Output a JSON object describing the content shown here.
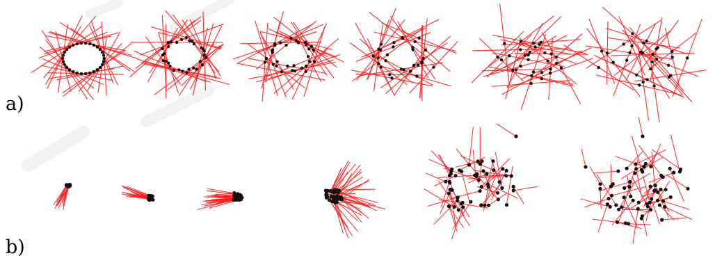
{
  "figure": {
    "row_labels": [
      "a)",
      "b)"
    ],
    "colors": {
      "rod": "#ff1a1a",
      "dot": "#151010",
      "watermark": "#d9d9d9"
    },
    "rows": [
      {
        "id": "a",
        "description_kind": "rings",
        "panels": [
          {
            "kind": "ring",
            "disorder": 0.0
          },
          {
            "kind": "ring",
            "disorder": 0.12
          },
          {
            "kind": "ring",
            "disorder": 0.22
          },
          {
            "kind": "ring",
            "disorder": 0.35
          },
          {
            "kind": "ring",
            "disorder": 0.55
          },
          {
            "kind": "ring",
            "disorder": 0.85
          }
        ]
      },
      {
        "id": "b",
        "description_kind": "clusters",
        "panels": [
          {
            "kind": "bundle",
            "spread": 0.1
          },
          {
            "kind": "bundle",
            "spread": 0.15
          },
          {
            "kind": "bundle",
            "spread": 0.22
          },
          {
            "kind": "bundle",
            "spread": 0.4
          },
          {
            "kind": "cloud",
            "spread": 0.8
          },
          {
            "kind": "cloud",
            "spread": 1.0
          }
        ]
      }
    ]
  }
}
